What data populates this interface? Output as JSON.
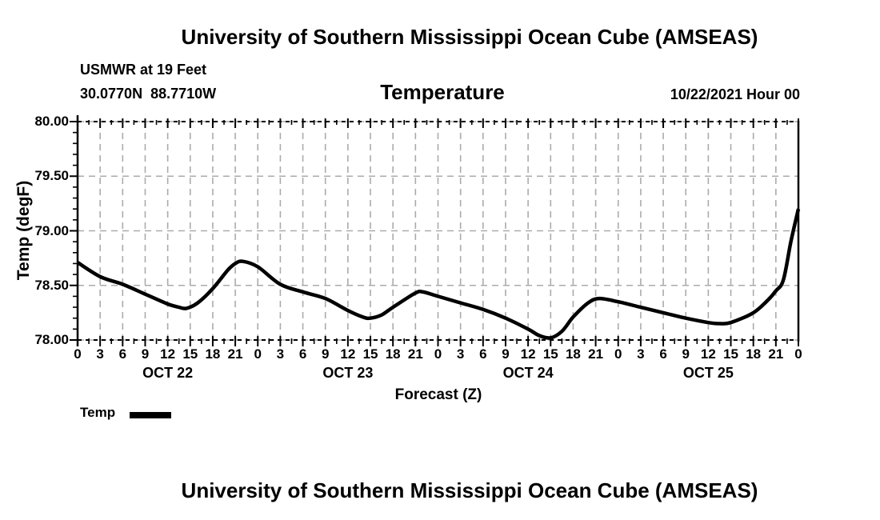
{
  "page": {
    "top_title": "University of Southern Mississippi Ocean Cube (AMSEAS)",
    "bottom_title": "University of Southern Mississippi Ocean Cube (AMSEAS)"
  },
  "header": {
    "station": "USMWR at 19 Feet",
    "coordinates": "30.0770N  88.7710W",
    "plot_title": "Temperature",
    "run_time": "10/22/2021 Hour 00"
  },
  "chart_data": {
    "type": "line",
    "title": "Temperature",
    "xlabel": "Forecast (Z)",
    "ylabel": "Temp (degF)",
    "xlim": [
      0,
      96
    ],
    "ylim": [
      78.0,
      80.0
    ],
    "grid": true,
    "colors": {
      "line": "#000000",
      "grid": "#ababab",
      "text": "#000000"
    },
    "y_ticks": [
      {
        "value": 78.0,
        "label": "78.00"
      },
      {
        "value": 78.5,
        "label": "78.50"
      },
      {
        "value": 79.0,
        "label": "79.00"
      },
      {
        "value": 79.5,
        "label": "79.50"
      },
      {
        "value": 80.0,
        "label": "80.00"
      }
    ],
    "y_minor_step": 0.1,
    "x_major_step_hours": 3,
    "x_minor_step_hours": 1.5,
    "x_ticks": [
      [
        0,
        "0"
      ],
      [
        3,
        "3"
      ],
      [
        6,
        "6"
      ],
      [
        9,
        "9"
      ],
      [
        12,
        "12"
      ],
      [
        15,
        "15"
      ],
      [
        18,
        "18"
      ],
      [
        21,
        "21"
      ],
      [
        24,
        "0"
      ],
      [
        27,
        "3"
      ],
      [
        30,
        "6"
      ],
      [
        33,
        "9"
      ],
      [
        36,
        "12"
      ],
      [
        39,
        "15"
      ],
      [
        42,
        "18"
      ],
      [
        45,
        "21"
      ],
      [
        48,
        "0"
      ],
      [
        51,
        "3"
      ],
      [
        54,
        "6"
      ],
      [
        57,
        "9"
      ],
      [
        60,
        "12"
      ],
      [
        63,
        "15"
      ],
      [
        66,
        "18"
      ],
      [
        69,
        "21"
      ],
      [
        72,
        "0"
      ],
      [
        75,
        "3"
      ],
      [
        78,
        "6"
      ],
      [
        81,
        "9"
      ],
      [
        84,
        "12"
      ],
      [
        87,
        "15"
      ],
      [
        90,
        "18"
      ],
      [
        93,
        "21"
      ],
      [
        96,
        "0"
      ]
    ],
    "day_labels": [
      {
        "hour": 12,
        "label": "OCT 22"
      },
      {
        "hour": 36,
        "label": "OCT 23"
      },
      {
        "hour": 60,
        "label": "OCT 24"
      },
      {
        "hour": 84,
        "label": "OCT 25"
      }
    ],
    "legend": {
      "label": "Temp",
      "color": "#000000"
    },
    "series": [
      {
        "name": "Temp",
        "color": "#000000",
        "points": [
          [
            0,
            78.71
          ],
          [
            3,
            78.58
          ],
          [
            6,
            78.51
          ],
          [
            9,
            78.42
          ],
          [
            12,
            78.33
          ],
          [
            13.5,
            78.3
          ],
          [
            14.5,
            78.29
          ],
          [
            16,
            78.34
          ],
          [
            18,
            78.47
          ],
          [
            20,
            78.64
          ],
          [
            21,
            78.7
          ],
          [
            22,
            78.72
          ],
          [
            24,
            78.67
          ],
          [
            27,
            78.51
          ],
          [
            30,
            78.44
          ],
          [
            33,
            78.38
          ],
          [
            36,
            78.27
          ],
          [
            38,
            78.21
          ],
          [
            39,
            78.2
          ],
          [
            40.5,
            78.23
          ],
          [
            42,
            78.3
          ],
          [
            45,
            78.43
          ],
          [
            46,
            78.44
          ],
          [
            48,
            78.4
          ],
          [
            51,
            78.34
          ],
          [
            54,
            78.28
          ],
          [
            57,
            78.2
          ],
          [
            60,
            78.1
          ],
          [
            61.5,
            78.04
          ],
          [
            63,
            78.02
          ],
          [
            64.5,
            78.08
          ],
          [
            66,
            78.21
          ],
          [
            68,
            78.34
          ],
          [
            69.5,
            78.38
          ],
          [
            72,
            78.35
          ],
          [
            75,
            78.3
          ],
          [
            78,
            78.25
          ],
          [
            81,
            78.2
          ],
          [
            84,
            78.16
          ],
          [
            85.5,
            78.15
          ],
          [
            87,
            78.16
          ],
          [
            90,
            78.25
          ],
          [
            92,
            78.37
          ],
          [
            93,
            78.45
          ],
          [
            94,
            78.55
          ],
          [
            95,
            78.9
          ],
          [
            96,
            79.2
          ]
        ]
      }
    ]
  }
}
